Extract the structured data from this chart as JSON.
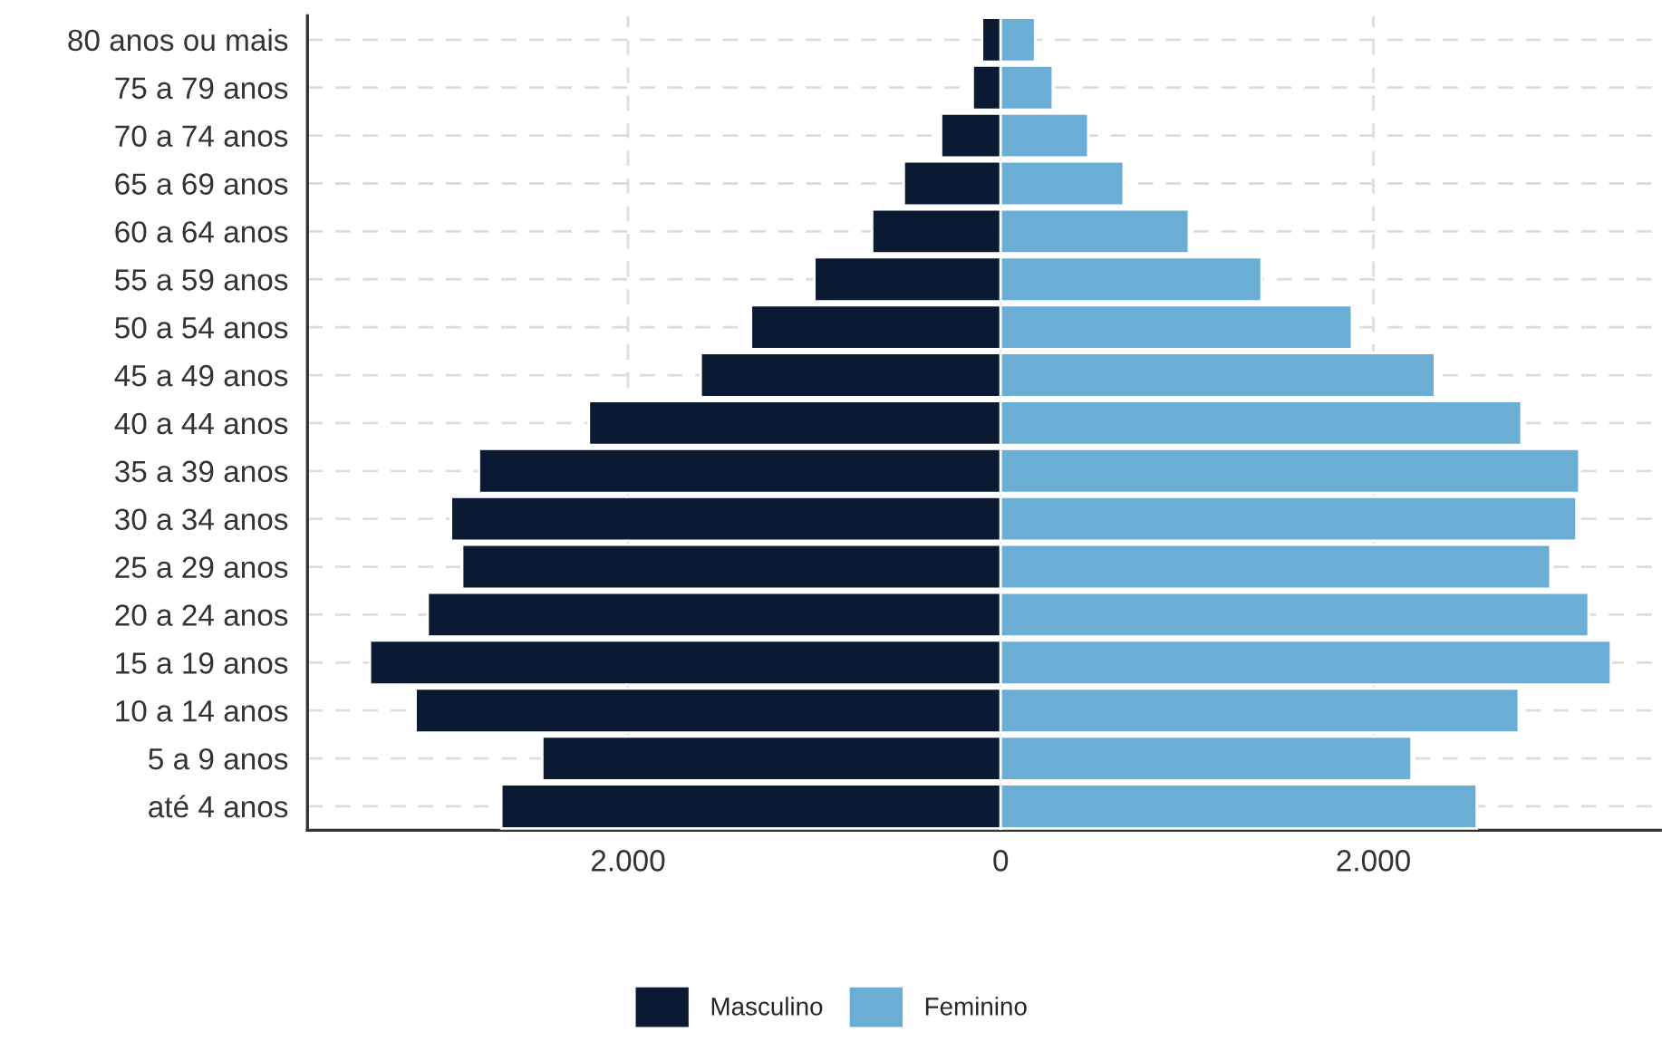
{
  "chart_data": {
    "type": "bar",
    "orientation": "horizontal",
    "stacked": true,
    "categories": [
      "80 anos ou mais",
      "75 a 79 anos",
      "70 a 74 anos",
      "65 a 69 anos",
      "60 a 64 anos",
      "55 a 59 anos",
      "50 a 54 anos",
      "45 a 49 anos",
      "40 a 44 anos",
      "35 a 39 anos",
      "30 a 34 anos",
      "25 a 29 anos",
      "20 a 24 anos",
      "15 a 19 anos",
      "10 a 14 anos",
      "5 a 9 anos",
      "até 4 anos"
    ],
    "series": [
      {
        "name": "Masculino",
        "color": "#0a1a33",
        "values": [
          -100,
          -150,
          -320,
          -520,
          -690,
          -1000,
          -1340,
          -1610,
          -2210,
          -2800,
          -2950,
          -2890,
          -3075,
          -3385,
          -3140,
          -2460,
          -2680
        ]
      },
      {
        "name": "Feminino",
        "color": "#6aaed6",
        "values": [
          185,
          280,
          470,
          660,
          1010,
          1400,
          1885,
          2330,
          2795,
          3105,
          3090,
          2950,
          3155,
          3275,
          2780,
          2205,
          2555
        ]
      }
    ],
    "xlim": [
      -3720,
      3540
    ],
    "xticks": [
      {
        "value": -2000,
        "label": "2.000"
      },
      0,
      {
        "value": 2000,
        "label": "2.000"
      }
    ],
    "grid": true,
    "legend": "bottom"
  }
}
